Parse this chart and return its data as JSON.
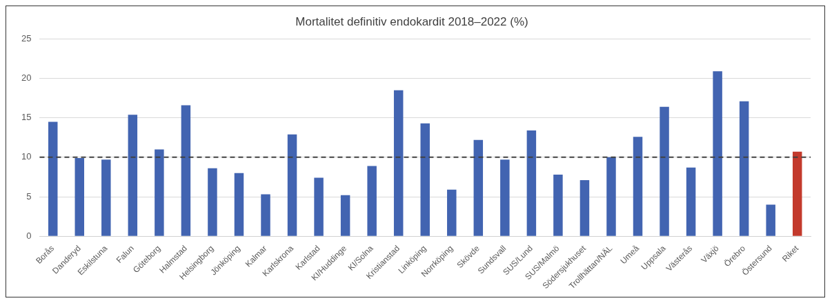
{
  "chart_data": {
    "type": "bar",
    "title": "Mortalitet definitiv endokardit 2018–2022 (%)",
    "categories": [
      "Borås",
      "Danderyd",
      "Eskilstuna",
      "Falun",
      "Göteborg",
      "Halmstad",
      "Helsingborg",
      "Jönköping",
      "Kalmar",
      "Karlskrona",
      "Karlstad",
      "KI/Huddinge",
      "KI/Solna",
      "Kristianstad",
      "Linköping",
      "Norrköping",
      "Skövde",
      "Sundsvall",
      "SUS/Lund",
      "SUS/Malmö",
      "Södersjukhuset",
      "Trollhättan/NÄL",
      "Umeå",
      "Uppsala",
      "Västerås",
      "Växjö",
      "Örebro",
      "Östersund",
      "Riket"
    ],
    "values": [
      14.5,
      9.9,
      9.7,
      15.4,
      11.0,
      16.6,
      8.6,
      8.0,
      5.3,
      12.9,
      7.4,
      5.2,
      8.9,
      18.5,
      14.3,
      5.9,
      12.2,
      9.7,
      13.4,
      7.8,
      7.1,
      10.0,
      12.6,
      16.4,
      8.7,
      20.9,
      17.1,
      4.0,
      10.7
    ],
    "colors": [
      "#4264b1",
      "#4264b1",
      "#4264b1",
      "#4264b1",
      "#4264b1",
      "#4264b1",
      "#4264b1",
      "#4264b1",
      "#4264b1",
      "#4264b1",
      "#4264b1",
      "#4264b1",
      "#4264b1",
      "#4264b1",
      "#4264b1",
      "#4264b1",
      "#4264b1",
      "#4264b1",
      "#4264b1",
      "#4264b1",
      "#4264b1",
      "#4264b1",
      "#4264b1",
      "#4264b1",
      "#4264b1",
      "#4264b1",
      "#4264b1",
      "#4264b1",
      "#c33a2c"
    ],
    "ylim": [
      0,
      25
    ],
    "yticks": [
      0,
      5,
      10,
      15,
      20,
      25
    ],
    "grid": "y",
    "legend": false,
    "ref_lines": [
      {
        "axis": "y",
        "value": 10,
        "color": "#404040",
        "line_style": "dashed"
      }
    ]
  }
}
